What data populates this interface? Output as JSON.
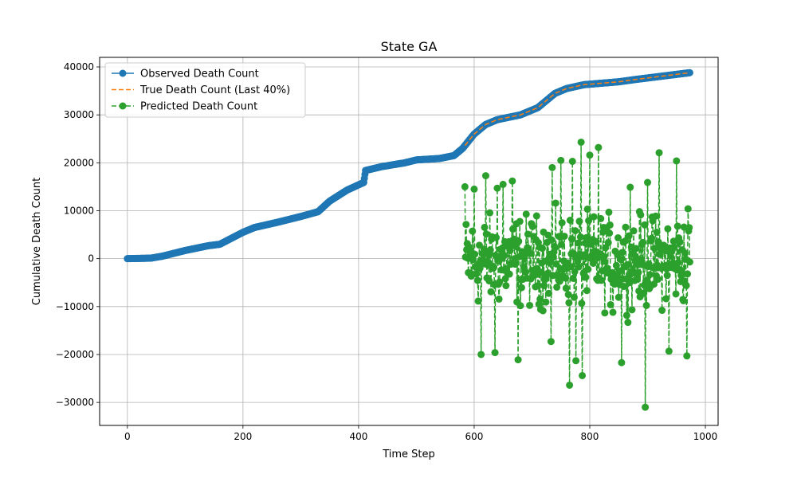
{
  "chart_data": {
    "type": "line",
    "title": "State GA",
    "xlabel": "Time Step",
    "ylabel": "Cumulative Death Count",
    "xlim": [
      -48,
      1022
    ],
    "ylim": [
      -34800,
      42000
    ],
    "xticks": [
      0,
      200,
      400,
      600,
      800,
      1000
    ],
    "yticks": [
      -30000,
      -20000,
      -10000,
      0,
      10000,
      20000,
      30000,
      40000
    ],
    "xtick_labels": [
      "0",
      "200",
      "400",
      "600",
      "800",
      "1000"
    ],
    "ytick_labels": [
      "−30000",
      "−20000",
      "−10000",
      "0",
      "10000",
      "20000",
      "30000",
      "40000"
    ],
    "grid": true,
    "legend_position": "upper-left",
    "series": [
      {
        "name": "Observed Death Count",
        "color": "#1f77b4",
        "style": "solid",
        "marker": "circle",
        "x_range": [
          0,
          973
        ],
        "anchors": [
          [
            0,
            0
          ],
          [
            40,
            100
          ],
          [
            60,
            500
          ],
          [
            100,
            1700
          ],
          [
            140,
            2700
          ],
          [
            160,
            3000
          ],
          [
            200,
            5500
          ],
          [
            220,
            6500
          ],
          [
            260,
            7600
          ],
          [
            300,
            8800
          ],
          [
            330,
            9800
          ],
          [
            350,
            12000
          ],
          [
            380,
            14300
          ],
          [
            409,
            15900
          ],
          [
            412,
            18400
          ],
          [
            440,
            19200
          ],
          [
            480,
            20000
          ],
          [
            500,
            20600
          ],
          [
            540,
            20900
          ],
          [
            565,
            21500
          ],
          [
            580,
            23000
          ],
          [
            600,
            26000
          ],
          [
            620,
            28000
          ],
          [
            640,
            29000
          ],
          [
            680,
            30000
          ],
          [
            710,
            31500
          ],
          [
            740,
            34500
          ],
          [
            760,
            35500
          ],
          [
            790,
            36300
          ],
          [
            820,
            36600
          ],
          [
            850,
            36900
          ],
          [
            880,
            37400
          ],
          [
            920,
            38000
          ],
          [
            973,
            38800
          ]
        ]
      },
      {
        "name": "True Death Count (Last 40%)",
        "color": "#ff7f0e",
        "style": "dashed",
        "marker": "none",
        "x_range": [
          584,
          973
        ]
      },
      {
        "name": "Predicted Death Count",
        "color": "#2ca02c",
        "style": "dashed",
        "marker": "circle",
        "x_range": [
          584,
          973
        ],
        "y_range": [
          -31000,
          24200
        ],
        "highlights": [
          [
            584,
            15000
          ],
          [
            600,
            14500
          ],
          [
            620,
            17300
          ],
          [
            640,
            14700
          ],
          [
            650,
            15500
          ],
          [
            666,
            16200
          ],
          [
            735,
            19000
          ],
          [
            750,
            20500
          ],
          [
            770,
            20300
          ],
          [
            785,
            24300
          ],
          [
            800,
            21600
          ],
          [
            815,
            23200
          ],
          [
            840,
            14100
          ],
          [
            870,
            14900
          ],
          [
            900,
            15900
          ],
          [
            920,
            22100
          ],
          [
            950,
            20400
          ],
          [
            970,
            10400
          ],
          [
            612,
            -20000
          ],
          [
            636,
            -19600
          ],
          [
            676,
            -21100
          ],
          [
            733,
            -17300
          ],
          [
            765,
            -26400
          ],
          [
            776,
            -21300
          ],
          [
            787,
            -24400
          ],
          [
            855,
            -21700
          ],
          [
            896,
            -31000
          ],
          [
            937,
            -19300
          ],
          [
            968,
            -20300
          ],
          [
            840,
            -11200
          ]
        ]
      }
    ]
  }
}
